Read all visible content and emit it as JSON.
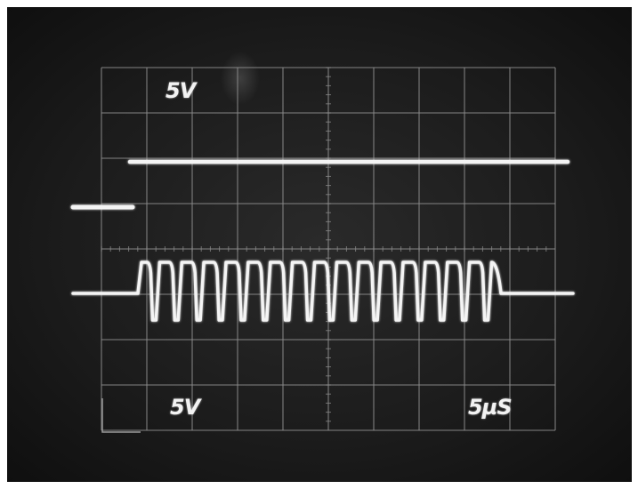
{
  "scope": {
    "channel1_scale": "5V",
    "channel2_scale": "5V",
    "timebase": "5µS"
  },
  "colors": {
    "screen_background": "#1b1b1b",
    "graticule": "#8c8c8c",
    "trace": "#f4f4f4"
  }
}
